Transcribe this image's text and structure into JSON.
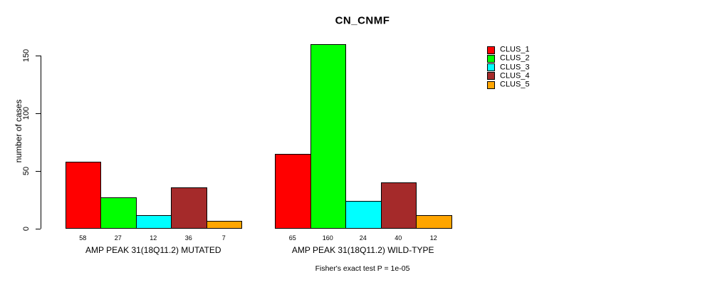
{
  "chart_data": {
    "type": "bar",
    "grouped": true,
    "title": "CN_CNMF",
    "ylabel": "number of cases",
    "xlabel": "",
    "yticks": [
      0,
      50,
      100,
      150
    ],
    "ylim": [
      0,
      160
    ],
    "grid": false,
    "legend_position": "top-right",
    "categories": [
      "AMP PEAK 31(18Q11.2) MUTATED",
      "AMP PEAK 31(18Q11.2) WILD-TYPE"
    ],
    "series": [
      {
        "name": "CLUS_1",
        "color": "#FF0000",
        "values": [
          58,
          65
        ]
      },
      {
        "name": "CLUS_2",
        "color": "#00FF00",
        "values": [
          27,
          160
        ]
      },
      {
        "name": "CLUS_3",
        "color": "#00FFFF",
        "values": [
          12,
          24
        ]
      },
      {
        "name": "CLUS_4",
        "color": "#A52A2A",
        "values": [
          36,
          40
        ]
      },
      {
        "name": "CLUS_5",
        "color": "#FFA500",
        "values": [
          7,
          12
        ]
      }
    ],
    "bar_value_labels_shown": true,
    "footnote": "Fisher's exact test P = 1e-05",
    "axis_color": "#000000",
    "background_color": "#FFFFFF"
  }
}
